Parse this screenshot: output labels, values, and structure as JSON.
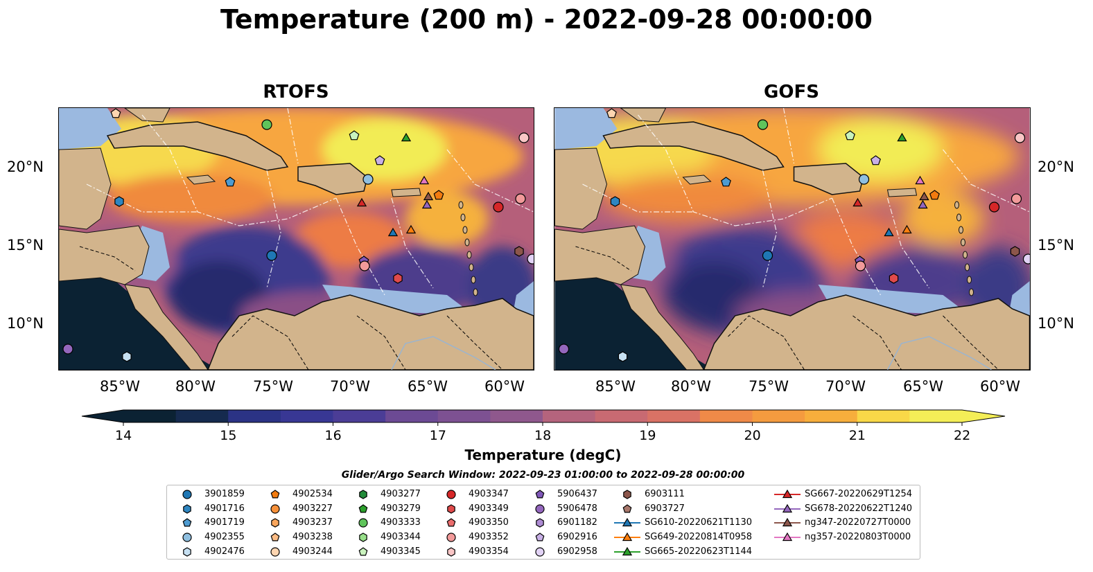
{
  "figure": {
    "title": "Temperature (200 m) - 2022-09-28 00:00:00",
    "panels": [
      {
        "title": "RTOFS"
      },
      {
        "title": "GOFS"
      }
    ],
    "lon_ticks": [
      "85°W",
      "80°W",
      "75°W",
      "70°W",
      "65°W",
      "60°W"
    ],
    "lat_ticks": [
      "20°N",
      "15°N",
      "10°N"
    ],
    "colorbar": {
      "label": "Temperature (degC)",
      "ticks": [
        "14",
        "15",
        "16",
        "17",
        "18",
        "19",
        "20",
        "21",
        "22"
      ],
      "range": [
        14,
        22
      ],
      "extend": "both"
    },
    "legend": {
      "title": "Glider/Argo Search Window: 2022-09-23 01:00:00 to 2022-09-28 00:00:00",
      "columns": [
        [
          {
            "label": "3901859",
            "marker": "circle",
            "color": "#1f77b4"
          },
          {
            "label": "4901716",
            "marker": "hexagon",
            "color": "#2f86c1"
          },
          {
            "label": "4901719",
            "marker": "pentagon",
            "color": "#4e9bd1"
          },
          {
            "label": "4902355",
            "marker": "circle",
            "color": "#8fbfe0"
          },
          {
            "label": "4902476",
            "marker": "hexagon",
            "color": "#c6e0f2"
          }
        ],
        [
          {
            "label": "4902534",
            "marker": "pentagon",
            "color": "#f27b0f"
          },
          {
            "label": "4903227",
            "marker": "circle",
            "color": "#f7913a"
          },
          {
            "label": "4903237",
            "marker": "hexagon",
            "color": "#f9a65c"
          },
          {
            "label": "4903238",
            "marker": "pentagon",
            "color": "#fbbb84"
          },
          {
            "label": "4903244",
            "marker": "circle",
            "color": "#fdd5b0"
          }
        ],
        [
          {
            "label": "4903277",
            "marker": "hexagon",
            "color": "#238b3a"
          },
          {
            "label": "4903279",
            "marker": "pentagon",
            "color": "#2ca02c"
          },
          {
            "label": "4903333",
            "marker": "circle",
            "color": "#5fc45b"
          },
          {
            "label": "4903344",
            "marker": "hexagon",
            "color": "#98df8a"
          },
          {
            "label": "4903345",
            "marker": "pentagon",
            "color": "#c9f2bd"
          }
        ],
        [
          {
            "label": "4903347",
            "marker": "circle",
            "color": "#d62728"
          },
          {
            "label": "4903349",
            "marker": "hexagon",
            "color": "#e04a4b"
          },
          {
            "label": "4903350",
            "marker": "pentagon",
            "color": "#ea6d6d"
          },
          {
            "label": "4903352",
            "marker": "circle",
            "color": "#f29a9a"
          },
          {
            "label": "4903354",
            "marker": "hexagon",
            "color": "#f9c6c6"
          }
        ],
        [
          {
            "label": "5906437",
            "marker": "pentagon",
            "color": "#7f57b8"
          },
          {
            "label": "5906478",
            "marker": "circle",
            "color": "#9467bd"
          },
          {
            "label": "6901182",
            "marker": "hexagon",
            "color": "#ad8bd3"
          },
          {
            "label": "6902916",
            "marker": "pentagon",
            "color": "#c8b0e6"
          },
          {
            "label": "6902958",
            "marker": "circle",
            "color": "#e2d3f5"
          }
        ],
        [
          {
            "label": "6903111",
            "marker": "hexagon",
            "color": "#8c564b"
          },
          {
            "label": "6903727",
            "marker": "pentagon",
            "color": "#a8786c"
          },
          {
            "label": "SG610-20220621T1130",
            "marker": "triangle-line",
            "color": "#1f77b4"
          },
          {
            "label": "SG649-20220814T0958",
            "marker": "triangle-line",
            "color": "#ff7f0e"
          },
          {
            "label": "SG665-20220623T1144",
            "marker": "triangle-line",
            "color": "#2ca02c"
          }
        ],
        [
          {
            "label": "SG667-20220629T1254",
            "marker": "triangle-line",
            "color": "#d62728"
          },
          {
            "label": "SG678-20220622T1240",
            "marker": "triangle-line",
            "color": "#9467bd"
          },
          {
            "label": "ng347-20220727T0000",
            "marker": "triangle-line",
            "color": "#8c564b"
          },
          {
            "label": "ng357-20220803T0000",
            "marker": "triangle-line",
            "color": "#e377c2"
          }
        ]
      ]
    }
  }
}
